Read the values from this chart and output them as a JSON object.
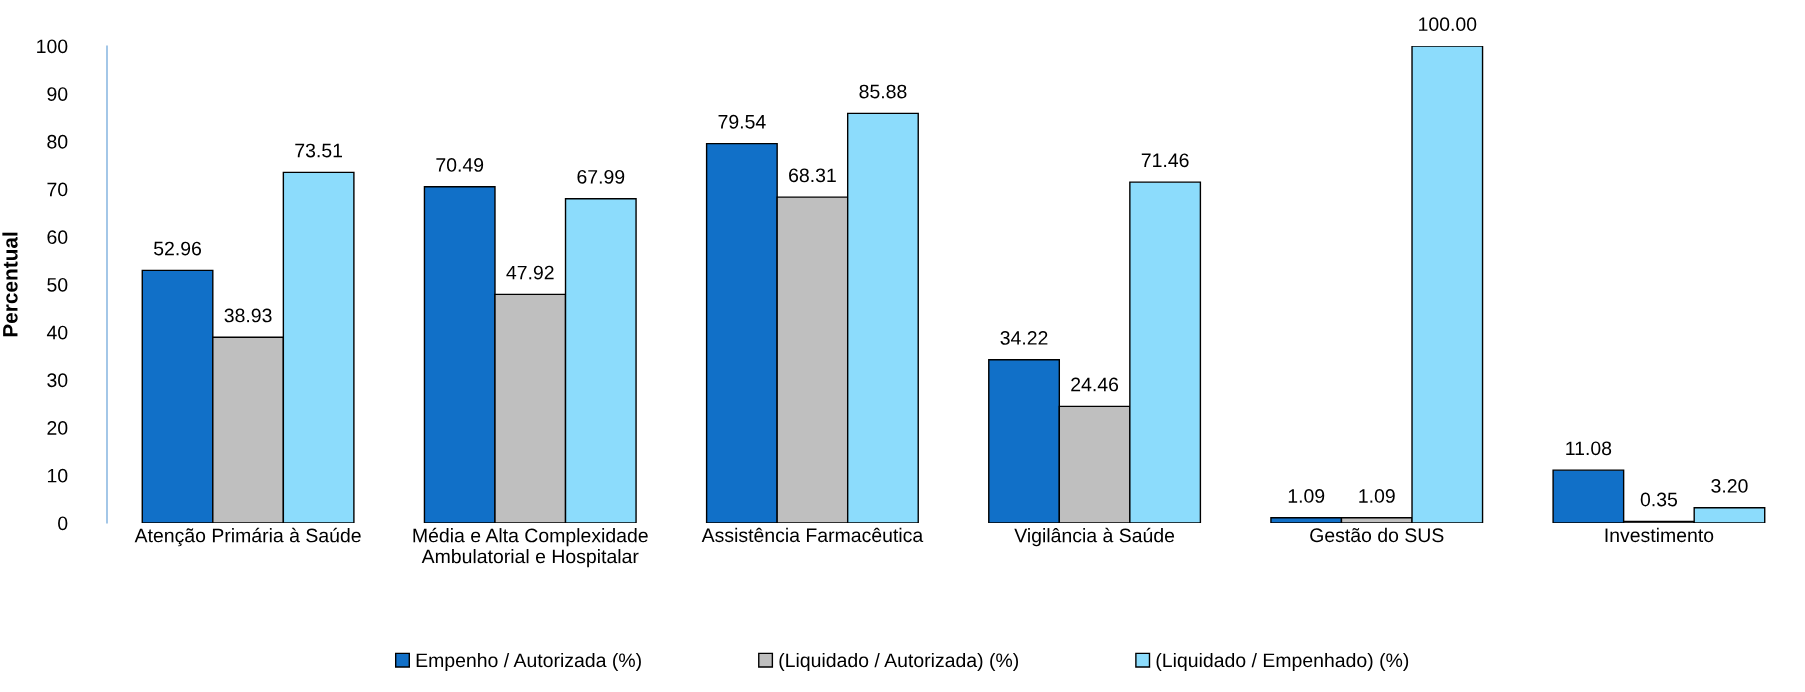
{
  "chart_data": {
    "type": "bar",
    "ylabel": "Percentual",
    "categories": [
      "Atenção Primária à Saúde",
      "Média e Alta Complexidade\nAmbulatorial e Hospitalar",
      "Assistência Farmacêutica",
      "Vigilância à Saúde",
      "Gestão do SUS",
      "Investimento"
    ],
    "series": [
      {
        "name": "Empenho / Autorizada (%)",
        "color": "#1170c8",
        "values": [
          52.96,
          70.49,
          79.54,
          34.22,
          1.09,
          11.08
        ],
        "value_labels": [
          "52.96",
          "70.49",
          "79.54",
          "34.22",
          "1.09",
          "11.08"
        ]
      },
      {
        "name": "(Liquidado / Autorizada) (%)",
        "color": "#bfbfbf",
        "values": [
          38.93,
          47.92,
          68.31,
          24.46,
          1.09,
          0.35
        ],
        "value_labels": [
          "38.93",
          "47.92",
          "68.31",
          "24.46",
          "1.09",
          "0.35"
        ]
      },
      {
        "name": "(Liquidado / Empenhado) (%)",
        "color": "#8cdcfc",
        "values": [
          73.51,
          67.99,
          85.88,
          71.46,
          100.0,
          3.2
        ],
        "value_labels": [
          "73.51",
          "67.99",
          "85.88",
          "71.46",
          "100.00",
          "3.20"
        ]
      }
    ],
    "ylim": [
      0,
      100
    ],
    "yticks": [
      0,
      10,
      20,
      30,
      40,
      50,
      60,
      70,
      80,
      90,
      100
    ],
    "grid": false,
    "legend": "bottom"
  }
}
